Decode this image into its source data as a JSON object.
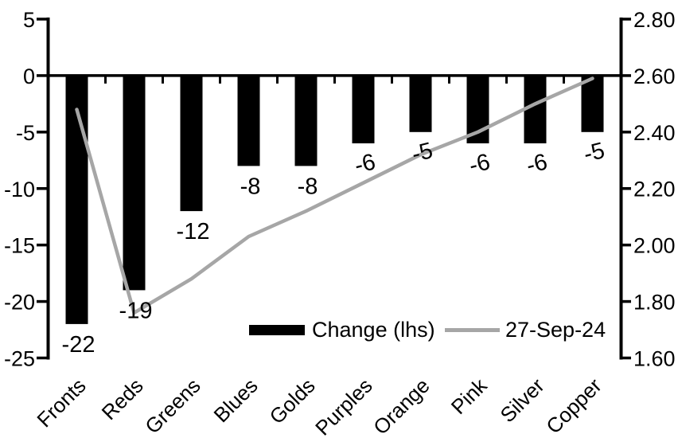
{
  "chart_data": {
    "type": "bar",
    "title": "",
    "categories": [
      "Fronts",
      "Reds",
      "Greens",
      "Blues",
      "Golds",
      "Purples",
      "Orange",
      "Pink",
      "Silver",
      "Copper"
    ],
    "series": [
      {
        "name": "Change (lhs)",
        "type": "bar",
        "axis": "left",
        "color": "#000000",
        "values": [
          -22,
          -19,
          -12,
          -8,
          -8,
          -6,
          -5,
          -6,
          -6,
          -5
        ],
        "data_labels": [
          "-22",
          "-19",
          "-12",
          "-8",
          "-8",
          "-6",
          "-5",
          "-6",
          "-6",
          "-5"
        ]
      },
      {
        "name": "27-Sep-24",
        "type": "line",
        "axis": "right",
        "color": "#a6a6a6",
        "values": [
          2.48,
          1.76,
          1.88,
          2.03,
          2.12,
          2.22,
          2.32,
          2.4,
          2.5,
          2.59
        ]
      }
    ],
    "left_axis": {
      "min": -25,
      "max": 5,
      "tick_labels": [
        "5",
        "0",
        "-5",
        "-10",
        "-15",
        "-20",
        "-25"
      ],
      "tick_values": [
        5,
        0,
        -5,
        -10,
        -15,
        -20,
        -25
      ]
    },
    "right_axis": {
      "min": 1.6,
      "max": 2.8,
      "tick_labels": [
        "2.80",
        "2.60",
        "2.40",
        "2.20",
        "2.00",
        "1.80",
        "1.60"
      ],
      "tick_values": [
        2.8,
        2.6,
        2.4,
        2.2,
        2.0,
        1.8,
        1.6
      ]
    },
    "legend": [
      {
        "label": "Change (lhs)",
        "swatch": "bar",
        "color": "#000000"
      },
      {
        "label": "27-Sep-24",
        "swatch": "line",
        "color": "#a6a6a6"
      }
    ],
    "legend_position": "inside-bottom",
    "grid": false,
    "background": "#ffffff",
    "text_color": "#000000"
  }
}
